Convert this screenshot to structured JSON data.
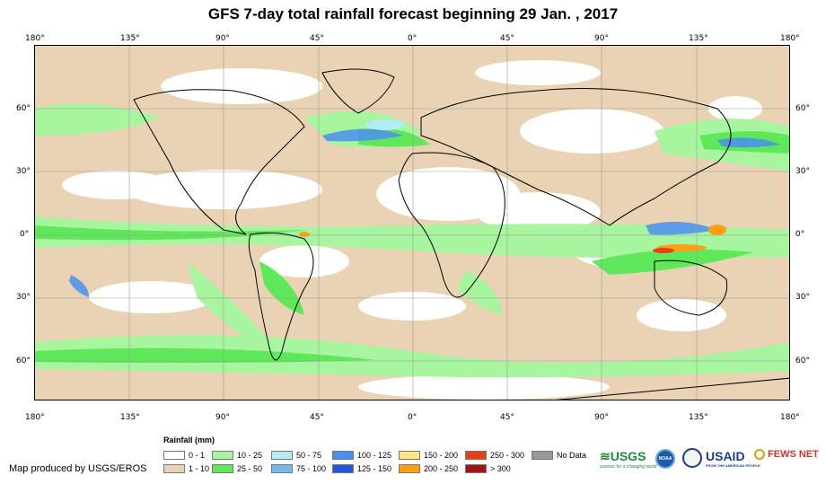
{
  "title": "GFS 7-day total rainfall forecast beginning 29 Jan. , 2017",
  "map": {
    "lon_ticks": [
      "180°",
      "135°",
      "90°",
      "45°",
      "0°",
      "45°",
      "90°",
      "135°",
      "180°"
    ],
    "lat_ticks": [
      "60°",
      "30°",
      "0°",
      "30°",
      "60°"
    ]
  },
  "legend": {
    "title": "Rainfall (mm)",
    "items": [
      {
        "label": "0 - 1",
        "color": "#ffffff"
      },
      {
        "label": "1 - 10",
        "color": "#e9d3b4"
      },
      {
        "label": "10 - 25",
        "color": "#a8f5a0"
      },
      {
        "label": "25 - 50",
        "color": "#5ee85a"
      },
      {
        "label": "50 - 75",
        "color": "#b4ecf4"
      },
      {
        "label": "75 - 100",
        "color": "#7ab8f0"
      },
      {
        "label": "100 - 125",
        "color": "#4a8ff0"
      },
      {
        "label": "125 - 150",
        "color": "#2356d8"
      },
      {
        "label": "150 - 200",
        "color": "#ffe680"
      },
      {
        "label": "200 - 250",
        "color": "#ffa014"
      },
      {
        "label": "250 - 300",
        "color": "#f03c14"
      },
      {
        "label": "> 300",
        "color": "#a01414"
      },
      {
        "label": "No Data",
        "color": "#999999"
      }
    ]
  },
  "credit": "Map produced by USGS/EROS",
  "logos": {
    "usgs": "USGS",
    "usgs_tagline": "science for a changing world",
    "noaa": "NOAA",
    "usaid": "USAID",
    "usaid_tagline": "FROM THE AMERICAN PEOPLE",
    "fews": "FEWS NET"
  }
}
